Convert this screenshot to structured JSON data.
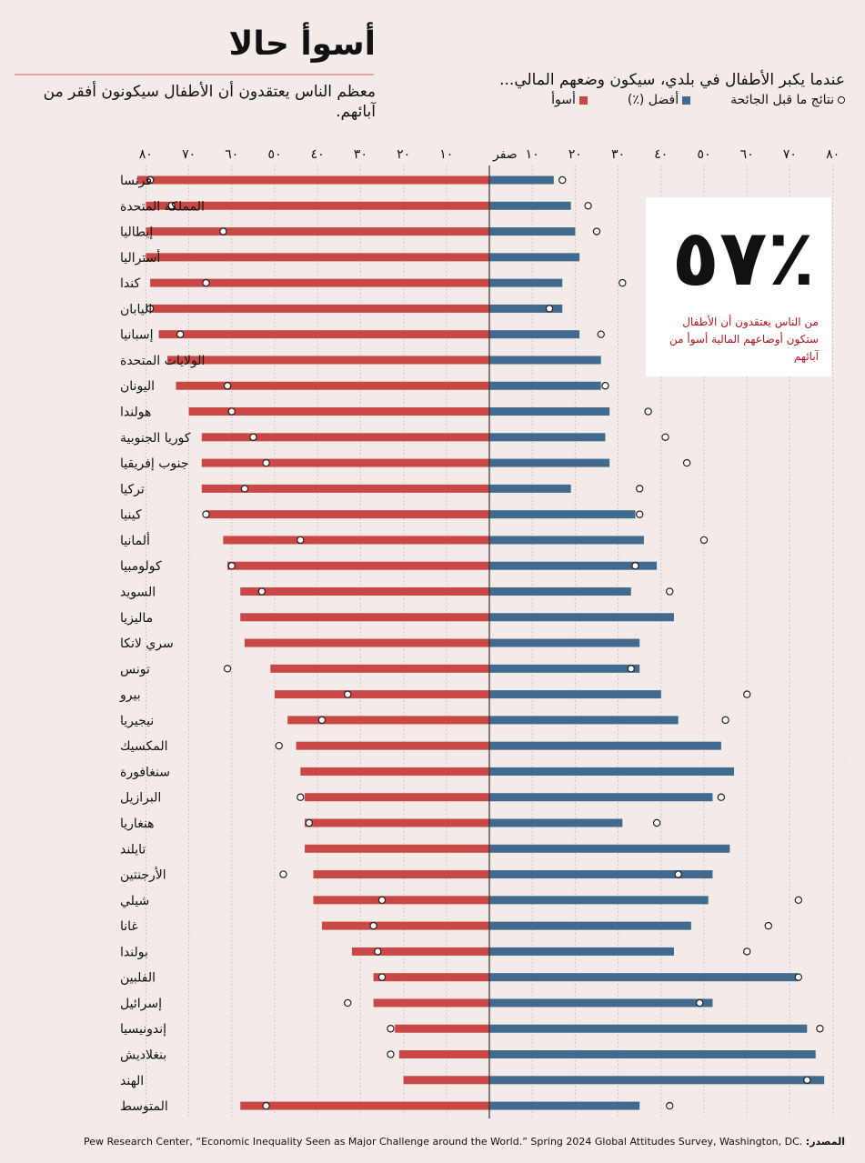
{
  "header": {
    "title": "أسوأ حالا",
    "subtitle": "معظم الناس يعتقدون أن الأطفال سيكونون أفقر من آبائهم.",
    "question": "عندما يكبر الأطفال في بلدي، سيكون وضعهم المالي...",
    "legend": {
      "prepandemic": "نتائج ما قبل الجائحة",
      "better": "أفضل (٪)",
      "worse": "أسوأ"
    }
  },
  "callout": {
    "value": "٪٥٧",
    "text": "من الناس يعتقدون أن الأطفال ستكون أوضاعهم المالية أسوأ من آبائهم"
  },
  "source": {
    "label": "المصدر:",
    "text": "Pew Research Center, “Economic Inequality Seen as Major Challenge around the World.” Spring 2024 Global Attitudes Survey, Washington, DC."
  },
  "colors": {
    "worse": "#c94845",
    "better": "#426a8c",
    "background": "#f2ebe8"
  },
  "chart_data": {
    "type": "bar",
    "orientation": "horizontal-diverging",
    "xlim": [
      -80,
      80
    ],
    "ticks": [
      {
        "value": -80,
        "label": "٨٠"
      },
      {
        "value": -70,
        "label": "٧٠"
      },
      {
        "value": -60,
        "label": "٦٠"
      },
      {
        "value": -50,
        "label": "٥٠"
      },
      {
        "value": -40,
        "label": "٤٠"
      },
      {
        "value": -30,
        "label": "٣٠"
      },
      {
        "value": -20,
        "label": "٢٠"
      },
      {
        "value": -10,
        "label": "١٠"
      },
      {
        "value": 0,
        "label": "صفر"
      },
      {
        "value": 10,
        "label": "١٠"
      },
      {
        "value": 20,
        "label": "٢٠"
      },
      {
        "value": 30,
        "label": "٣٠"
      },
      {
        "value": 40,
        "label": "٤٠"
      },
      {
        "value": 50,
        "label": "٥٠"
      },
      {
        "value": 60,
        "label": "٦٠"
      },
      {
        "value": 70,
        "label": "٧٠"
      },
      {
        "value": 80,
        "label": "٨٠"
      }
    ],
    "grid": true,
    "legend_position": "top-right",
    "categories": [
      "فرنسا",
      "المملكة المتحدة",
      "إيطاليا",
      "أستراليا",
      "كندا",
      "اليابان",
      "إسبانيا",
      "الولايات المتحدة",
      "اليونان",
      "هولندا",
      "كوريا الجنوبية",
      "جنوب إفريقيا",
      "تركيا",
      "كينيا",
      "ألمانيا",
      "كولومبيا",
      "السويد",
      "ماليزيا",
      "سري لانكا",
      "تونس",
      "بيرو",
      "نيجيريا",
      "المكسيك",
      "سنغافورة",
      "البرازيل",
      "هنغاريا",
      "تايلند",
      "الأرجنتين",
      "شيلي",
      "غانا",
      "بولندا",
      "الفلبين",
      "إسرائيل",
      "إندونيسيا",
      "بنغلاديش",
      "الهند",
      "المتوسط"
    ],
    "series": [
      {
        "name": "أسوأ",
        "values": [
          82,
          80,
          80,
          80,
          79,
          79,
          77,
          75,
          73,
          70,
          67,
          67,
          67,
          66,
          62,
          61,
          58,
          58,
          57,
          51,
          50,
          47,
          45,
          44,
          43,
          43,
          43,
          41,
          41,
          39,
          32,
          27,
          27,
          22,
          21,
          20,
          58
        ]
      },
      {
        "name": "أفضل (٪)",
        "values": [
          15,
          19,
          20,
          21,
          17,
          17,
          21,
          26,
          26,
          28,
          27,
          28,
          19,
          34,
          36,
          39,
          33,
          43,
          35,
          35,
          40,
          44,
          54,
          57,
          52,
          31,
          56,
          52,
          51,
          47,
          43,
          72,
          52,
          74,
          76,
          78,
          35
        ]
      },
      {
        "name": "نتائج ما قبل الجائحة",
        "values": [
          -79,
          -74,
          -62,
          null,
          -66,
          -79,
          -72,
          null,
          -61,
          -60,
          -55,
          -52,
          -57,
          -66,
          -44,
          -60,
          -53,
          null,
          null,
          -61,
          -33,
          -39,
          -49,
          null,
          -44,
          -42,
          null,
          -48,
          -25,
          -27,
          -26,
          -25,
          -33,
          -23,
          -23,
          null,
          -52
        ]
      },
      {
        "name": "نتائج ما قبل الجائحة (أفضل)",
        "values": [
          17,
          23,
          25,
          null,
          31,
          14,
          26,
          null,
          27,
          37,
          41,
          46,
          35,
          35,
          50,
          34,
          42,
          null,
          null,
          33,
          60,
          55,
          null,
          null,
          54,
          39,
          null,
          44,
          72,
          65,
          60,
          72,
          49,
          77,
          null,
          74,
          42
        ]
      }
    ]
  }
}
